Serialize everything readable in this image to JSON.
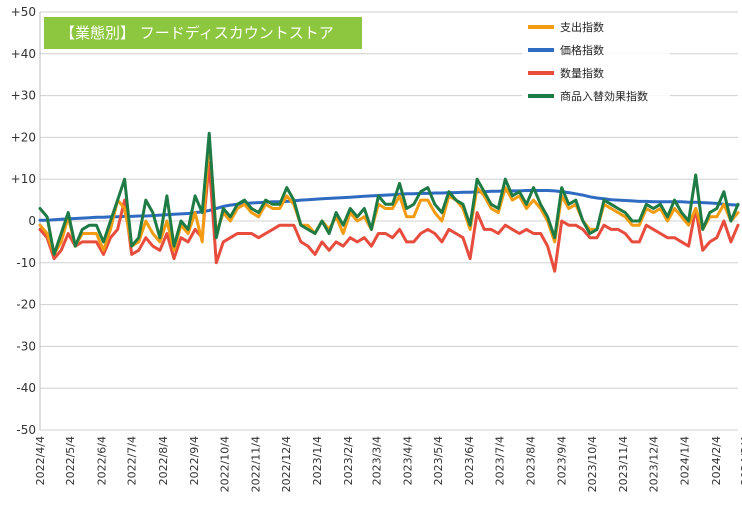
{
  "chart_data": {
    "type": "line",
    "title": "【業態別】 フードディスカウントストア",
    "title_bg": "#8dc63f",
    "xlabel": "",
    "ylabel": "",
    "ylim": [
      -50,
      50
    ],
    "yticks": [
      50,
      40,
      30,
      20,
      10,
      0,
      -10,
      -20,
      -30,
      -40,
      -50
    ],
    "ytick_labels": [
      "+50",
      "+40",
      "+30",
      "+20",
      "+10",
      "0",
      "-10",
      "-20",
      "-30",
      "-40",
      "-50"
    ],
    "grid": true,
    "legend_position": "top-right",
    "x_start": "2022-04-04",
    "x_step_days": 7,
    "x_tick_labels": [
      "2022/4/4",
      "2022/5/4",
      "2022/6/4",
      "2022/7/4",
      "2022/8/4",
      "2022/9/4",
      "2022/10/4",
      "2022/11/4",
      "2022/12/4",
      "2023/1/4",
      "2023/2/4",
      "2023/3/4",
      "2023/4/4",
      "2023/5/4",
      "2023/6/4",
      "2023/7/4",
      "2023/8/4",
      "2023/9/4",
      "2023/10/4",
      "2023/11/4",
      "2023/12/4",
      "2024/1/4",
      "2024/2/4",
      "2024/3/4"
    ],
    "series": [
      {
        "name": "支出指数",
        "color": "#f39c12",
        "values": [
          -1,
          -3,
          -8,
          -5,
          1,
          -6,
          -3,
          -3,
          -3,
          -7,
          -2,
          5,
          3,
          -6,
          -5,
          0,
          -3,
          -5,
          0,
          -7,
          -1,
          -3,
          2,
          -5,
          20,
          -3,
          2,
          0,
          3,
          4,
          2,
          1,
          4,
          3,
          3,
          6,
          4,
          -1,
          -1,
          -3,
          0,
          -2,
          1,
          -3,
          2,
          0,
          1,
          -2,
          4,
          3,
          3,
          6,
          1,
          1,
          5,
          5,
          2,
          0,
          6,
          5,
          3,
          -2,
          8,
          6,
          3,
          2,
          8,
          5,
          6,
          3,
          5,
          3,
          0,
          -5,
          6,
          3,
          4,
          0,
          -2,
          -2,
          4,
          3,
          2,
          1,
          -1,
          -1,
          3,
          2,
          3,
          0,
          3,
          1,
          -1,
          3,
          -2,
          1,
          1,
          4,
          0,
          2
        ]
      },
      {
        "name": "価格指数",
        "color": "#2f6cc1",
        "values": [
          0.2,
          0.2,
          0.3,
          0.4,
          0.5,
          0.6,
          0.7,
          0.8,
          0.9,
          0.9,
          1.0,
          1.0,
          1.1,
          1.1,
          1.2,
          1.2,
          1.3,
          1.4,
          1.5,
          1.6,
          1.7,
          1.8,
          2.0,
          2.2,
          2.5,
          3.0,
          3.5,
          3.8,
          4.0,
          4.2,
          4.3,
          4.4,
          4.5,
          4.6,
          4.6,
          4.7,
          4.8,
          5.0,
          5.1,
          5.2,
          5.3,
          5.4,
          5.5,
          5.6,
          5.7,
          5.8,
          5.9,
          6.0,
          6.1,
          6.2,
          6.3,
          6.4,
          6.5,
          6.5,
          6.6,
          6.6,
          6.7,
          6.7,
          6.8,
          6.8,
          6.9,
          6.9,
          7.0,
          7.0,
          7.1,
          7.1,
          7.2,
          7.2,
          7.2,
          7.3,
          7.3,
          7.3,
          7.3,
          7.2,
          7.0,
          6.8,
          6.5,
          6.2,
          5.8,
          5.5,
          5.3,
          5.1,
          5.0,
          4.9,
          4.8,
          4.7,
          4.7,
          4.6,
          4.6,
          4.6,
          4.6,
          4.6,
          4.5,
          4.5,
          4.4,
          4.3,
          4.2,
          4.0,
          3.9,
          3.8
        ]
      },
      {
        "name": "数量指数",
        "color": "#e74c3c",
        "values": [
          -2,
          -4,
          -9,
          -7,
          -3,
          -6,
          -5,
          -5,
          -5,
          -8,
          -4,
          -2,
          5,
          -8,
          -7,
          -4,
          -6,
          -7,
          -3,
          -9,
          -4,
          -5,
          -2,
          -4,
          14,
          -10,
          -5,
          -4,
          -3,
          -3,
          -3,
          -4,
          -3,
          -2,
          -1,
          -1,
          -1,
          -5,
          -6,
          -8,
          -5,
          -7,
          -5,
          -6,
          -4,
          -5,
          -4,
          -6,
          -3,
          -3,
          -4,
          -2,
          -5,
          -5,
          -3,
          -2,
          -3,
          -5,
          -2,
          -3,
          -4,
          -9,
          2,
          -2,
          -2,
          -3,
          -1,
          -2,
          -3,
          -2,
          -3,
          -3,
          -6,
          -12,
          0,
          -1,
          -1,
          -2,
          -4,
          -4,
          -1,
          -2,
          -2,
          -3,
          -5,
          -5,
          -1,
          -2,
          -3,
          -4,
          -4,
          -5,
          -6,
          3,
          -7,
          -5,
          -4,
          0,
          -5,
          -1
        ]
      },
      {
        "name": "商品入替効果指数",
        "color": "#1e7b45",
        "values": [
          3,
          1,
          -8,
          -3,
          2,
          -6,
          -2,
          -1,
          -1,
          -5,
          0,
          5,
          10,
          -6,
          -4,
          5,
          2,
          -4,
          6,
          -6,
          0,
          -2,
          6,
          2,
          21,
          -4,
          3,
          1,
          4,
          5,
          3,
          2,
          5,
          4,
          4,
          8,
          5,
          -1,
          -2,
          -3,
          0,
          -3,
          2,
          -1,
          3,
          1,
          3,
          -2,
          6,
          4,
          4,
          9,
          3,
          4,
          7,
          8,
          4,
          2,
          7,
          5,
          4,
          -1,
          10,
          7,
          4,
          3,
          10,
          6,
          7,
          4,
          8,
          4,
          1,
          -4,
          8,
          4,
          5,
          0,
          -3,
          -2,
          5,
          4,
          3,
          2,
          0,
          0,
          4,
          3,
          4,
          1,
          5,
          2,
          0,
          11,
          -2,
          2,
          3,
          7,
          0,
          4
        ]
      }
    ]
  }
}
